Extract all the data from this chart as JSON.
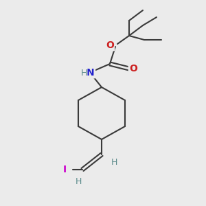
{
  "background_color": "#ebebeb",
  "bond_color": "#3a3a3a",
  "bond_width": 1.5,
  "atom_colors": {
    "N": "#2020cc",
    "O": "#cc2020",
    "I": "#cc00cc",
    "H": "#5a8a8a",
    "C": "#3a3a3a"
  },
  "figsize": [
    3.0,
    3.0
  ],
  "dpi": 100
}
